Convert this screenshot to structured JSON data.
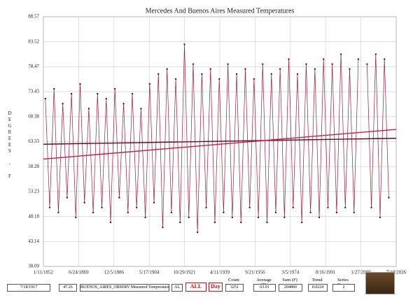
{
  "chart_data": {
    "type": "line",
    "title": "Mercedes And Buenos Aires Measured Temperatures",
    "y_label": "DEGREES - F",
    "ylim": [
      38.09,
      88.57
    ],
    "yticks": [
      38.09,
      43.14,
      48.18,
      53.23,
      58.28,
      63.33,
      68.38,
      73.43,
      78.47,
      83.52,
      88.57
    ],
    "xlim": [
      1852.03,
      2026.52
    ],
    "xticks": [
      {
        "value": 1852.03,
        "label": "1/11/1852"
      },
      {
        "value": 1869.48,
        "label": "6/24/1869"
      },
      {
        "value": 1886.93,
        "label": "12/5/1886"
      },
      {
        "value": 1904.38,
        "label": "5/17/1904"
      },
      {
        "value": 1921.83,
        "label": "10/29/1921"
      },
      {
        "value": 1939.28,
        "label": "4/11/1939"
      },
      {
        "value": 1956.72,
        "label": "9/21/1956"
      },
      {
        "value": 1974.17,
        "label": "3/5/1974"
      },
      {
        "value": 1991.62,
        "label": "8/16/1991"
      },
      {
        "value": 2009.07,
        "label": "1/27/2009"
      },
      {
        "value": 2026.52,
        "label": "7/10/2026"
      }
    ],
    "grid": true,
    "series": [
      {
        "name": "BUENOS_AIRES_OBSERV Measured Temperature",
        "color": "#a0183c",
        "x": [
          1853.0,
          1855.15,
          1857.3,
          1859.45,
          1861.6,
          1863.75,
          1865.9,
          1868.05,
          1870.2,
          1872.35,
          1874.5,
          1876.65,
          1878.8,
          1880.95,
          1883.1,
          1885.25,
          1887.4,
          1889.55,
          1891.7,
          1893.85,
          1896.0,
          1898.15,
          1900.3,
          1902.45,
          1904.6,
          1906.75,
          1908.9,
          1911.05,
          1913.2,
          1915.35,
          1917.5,
          1919.65,
          1921.8,
          1923.95,
          1926.1,
          1928.25,
          1930.4,
          1932.55,
          1934.7,
          1936.85,
          1939.0,
          1941.15,
          1943.3,
          1945.45,
          1947.6,
          1949.75,
          1951.9,
          1954.05,
          1956.2,
          1958.35,
          1960.5,
          1962.65,
          1964.8,
          1966.95,
          1969.1,
          1971.25,
          1973.4,
          1975.55,
          1977.7,
          1979.85,
          1982.0,
          1984.15,
          1986.3,
          1988.45,
          1990.6,
          1992.75,
          1994.9,
          1997.05,
          1999.2,
          2001.35,
          2003.5,
          2005.65,
          2007.8,
          2009.95,
          2012.1,
          2014.25,
          2016.4,
          2018.55,
          2020.7,
          2022.85
        ],
        "values": [
          72,
          50,
          74,
          49,
          71,
          52,
          73,
          48,
          75,
          51,
          70,
          49,
          73,
          50,
          72,
          47,
          74,
          52,
          71,
          49,
          73,
          50,
          70,
          48,
          75,
          51,
          77,
          46,
          78,
          49,
          76,
          47,
          83,
          48,
          79,
          45,
          77,
          50,
          78,
          47,
          76,
          49,
          79,
          48,
          77,
          47,
          78,
          50,
          76,
          48,
          79,
          47,
          77,
          49,
          78,
          48,
          80,
          50,
          77,
          47,
          79,
          49,
          78,
          48,
          80,
          50,
          79,
          49,
          81,
          50,
          78,
          49,
          80,
          null,
          79,
          50,
          81,
          48,
          80,
          52
        ]
      },
      {
        "color": "#5a1020",
        "x": [
          1852.03,
          2026.52
        ],
        "values": [
          62.8,
          64.0
        ]
      },
      {
        "color": "#c0204a",
        "x": [
          1852.03,
          2026.52
        ],
        "values": [
          59.8,
          65.8
        ]
      }
    ]
  },
  "footer": {
    "date": "7/18/1917",
    "value": "47.26",
    "al": "AL",
    "all": "ALL",
    "day": "Day",
    "stats": [
      {
        "label": "Count",
        "value": "3251"
      },
      {
        "label": "Average (F)",
        "value": "63.01"
      },
      {
        "label": "Sum (F)",
        "value": "204860"
      },
      {
        "label": "Trend",
        "value": "0.0224"
      },
      {
        "label": "Series Count",
        "value": "2"
      }
    ]
  }
}
